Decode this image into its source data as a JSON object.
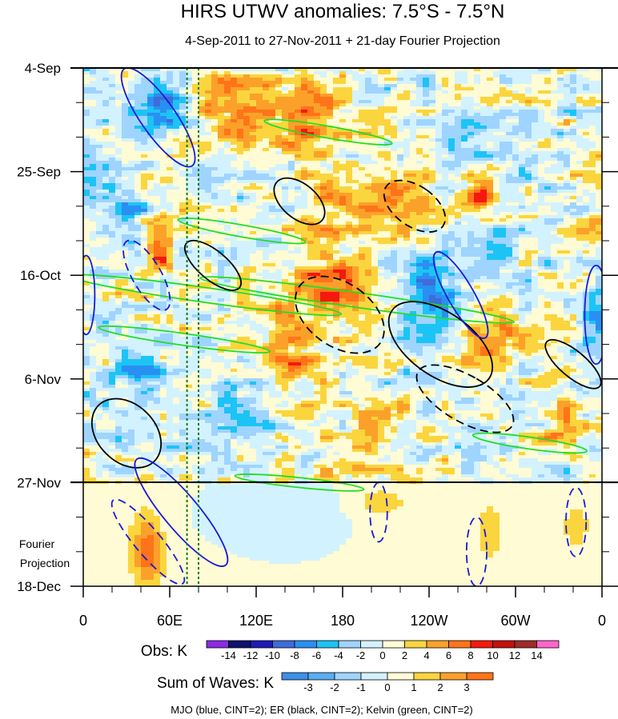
{
  "chart_data": {
    "type": "heatmap",
    "title": "HIRS UTWV anomalies: 7.5°S - 7.5°N",
    "subtitle": "4-Sep-2011 to 27-Nov-2011 + 21-day Fourier Projection",
    "y_axis": {
      "ticks": [
        "4-Sep",
        "25-Sep",
        "16-Oct",
        "6-Nov",
        "27-Nov",
        "18-Dec"
      ],
      "tick_days": [
        0,
        21,
        42,
        63,
        84,
        105
      ],
      "range_days": [
        0,
        105
      ],
      "observation_end_day": 84
    },
    "x_axis": {
      "ticks": [
        "0",
        "60E",
        "120E",
        "180",
        "120W",
        "60W",
        "0"
      ],
      "tick_lon": [
        0,
        60,
        120,
        180,
        240,
        300,
        360
      ],
      "range_lon": [
        0,
        360
      ]
    },
    "forecast_label": [
      "Fourier",
      "Projection"
    ],
    "reference_lines_lon": [
      72,
      80
    ],
    "obs_colorbar": {
      "label": "Obs: K",
      "levels": [
        -14,
        -12,
        -10,
        -8,
        -6,
        -4,
        -2,
        0,
        2,
        4,
        6,
        8,
        10,
        12,
        14
      ],
      "colors": [
        "#8a2be2",
        "#10106e",
        "#1c1cb4",
        "#3e6cd8",
        "#2a8ff2",
        "#1cc4f5",
        "#9fd4ff",
        "#d3f2ff",
        "#fffbd4",
        "#fbd53e",
        "#fba12a",
        "#ff7418",
        "#f5180f",
        "#c4100e",
        "#a02a2a",
        "#ff66cc"
      ]
    },
    "waves_colorbar": {
      "label": "Sum of Waves: K",
      "levels": [
        -3,
        -2,
        -1,
        0,
        1,
        2,
        3
      ],
      "colors": [
        "#3e8fe8",
        "#5aaef0",
        "#9fd4ff",
        "#d3f2ff",
        "#fffbd4",
        "#fbd53e",
        "#fba12a",
        "#ff7418"
      ]
    },
    "legend": "MJO (blue, CINT=2); ER (black, CINT=2); Kelvin (green, CINT=2)",
    "wave_contours": {
      "mjo_blue": [
        {
          "lon": 52,
          "day": 10,
          "rlon": 12,
          "rday": 12,
          "rot": -35,
          "dash": false
        },
        {
          "lon": 44,
          "day": 42,
          "rlon": 10,
          "rday": 8,
          "rot": -30,
          "dash": true
        },
        {
          "lon": 2,
          "day": 46,
          "rlon": 6,
          "rday": 8,
          "rot": 0,
          "dash": false
        },
        {
          "lon": 262,
          "day": 46,
          "rlon": 9,
          "rday": 10,
          "rot": -30,
          "dash": false
        },
        {
          "lon": 356,
          "day": 50,
          "rlon": 8,
          "rday": 10,
          "rot": 0,
          "dash": false
        },
        {
          "lon": 68,
          "day": 90,
          "rlon": 12,
          "rday": 14,
          "rot": -40,
          "dash": false
        },
        {
          "lon": 45,
          "day": 96,
          "rlon": 9,
          "rday": 11,
          "rot": -40,
          "dash": true
        },
        {
          "lon": 342,
          "day": 92,
          "rlon": 7,
          "rday": 7,
          "rot": 0,
          "dash": true
        },
        {
          "lon": 273,
          "day": 98,
          "rlon": 7,
          "rday": 7,
          "rot": 0,
          "dash": true
        },
        {
          "lon": 205,
          "day": 90,
          "rlon": 6,
          "rday": 6,
          "rot": 0,
          "dash": true
        }
      ],
      "er_black": [
        {
          "lon": 248,
          "day": 56,
          "rlon": 22,
          "rday": 12,
          "rot": -55,
          "dash": false
        },
        {
          "lon": 178,
          "day": 50,
          "rlon": 22,
          "rday": 10,
          "rot": -55,
          "dash": true
        },
        {
          "lon": 230,
          "day": 28,
          "rlon": 14,
          "rday": 7,
          "rot": -55,
          "dash": true
        },
        {
          "lon": 150,
          "day": 27,
          "rlon": 12,
          "rday": 6,
          "rot": -50,
          "dash": false
        },
        {
          "lon": 265,
          "day": 67,
          "rlon": 16,
          "rday": 11,
          "rot": -60,
          "dash": true
        },
        {
          "lon": 90,
          "day": 40,
          "rlon": 10,
          "rday": 7,
          "rot": -50,
          "dash": false
        },
        {
          "lon": 30,
          "day": 74,
          "rlon": 20,
          "rday": 8,
          "rot": -45,
          "dash": false
        },
        {
          "lon": 340,
          "day": 60,
          "rlon": 9,
          "rday": 7,
          "rot": -50,
          "dash": false
        }
      ],
      "kelvin_green": [
        {
          "lon": 85,
          "day": 46,
          "rlon": 95,
          "rday": 1.5,
          "rot": 8,
          "dash": false
        },
        {
          "lon": 190,
          "day": 47,
          "rlon": 110,
          "rday": 1.5,
          "rot": 8,
          "dash": false
        },
        {
          "lon": 170,
          "day": 13,
          "rlon": 45,
          "rday": 1.2,
          "rot": 10,
          "dash": false
        },
        {
          "lon": 110,
          "day": 33,
          "rlon": 45,
          "rday": 1.2,
          "rot": 10,
          "dash": false
        },
        {
          "lon": 70,
          "day": 55,
          "rlon": 60,
          "rday": 1.2,
          "rot": 8,
          "dash": false
        },
        {
          "lon": 310,
          "day": 76,
          "rlon": 40,
          "rday": 1.2,
          "rot": 8,
          "dash": false
        },
        {
          "lon": 150,
          "day": 84,
          "rlon": 45,
          "rday": 1.0,
          "rot": 6,
          "dash": false
        }
      ]
    }
  }
}
